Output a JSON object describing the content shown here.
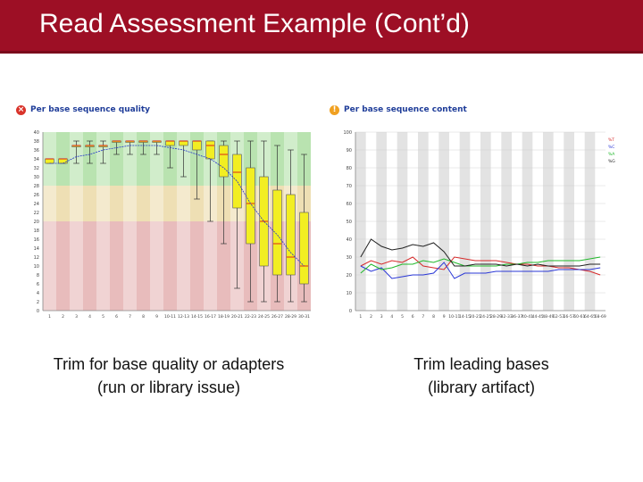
{
  "slide": {
    "title": "Read Assessment Example (Cont’d)",
    "header_color": "#9d0f25"
  },
  "left_panel": {
    "status_icon": "fail-cross-icon",
    "title": "Per base sequence quality",
    "caption_line1": "Trim for base quality or adapters",
    "caption_line2": "(run or library issue)"
  },
  "right_panel": {
    "status_icon": "warning-exclamation-icon",
    "title": "Per base sequence content",
    "caption_line1": "Trim leading bases",
    "caption_line2": "(library artifact)"
  },
  "chart_data": [
    {
      "type": "box",
      "x_ticks": [
        "1",
        "2",
        "3",
        "4",
        "5",
        "6",
        "7",
        "8",
        "9",
        "10-11",
        "12-13",
        "14-15",
        "16-17",
        "18-19",
        "20-21",
        "22-23",
        "24-25",
        "26-27",
        "28-29",
        "30-31"
      ],
      "ylim": [
        0,
        40
      ],
      "y_ticks": [
        0,
        2,
        4,
        6,
        8,
        10,
        12,
        14,
        16,
        18,
        20,
        22,
        24,
        26,
        28,
        30,
        32,
        34,
        36,
        38,
        40
      ],
      "zones": [
        {
          "from": 28,
          "to": 40,
          "color": "#b9e3b0"
        },
        {
          "from": 20,
          "to": 28,
          "color": "#eedfb4"
        },
        {
          "from": 0,
          "to": 20,
          "color": "#e8bcbc"
        }
      ],
      "boxes": [
        {
          "q1": 33,
          "med": 34,
          "q3": 34,
          "lo": 33,
          "hi": 34
        },
        {
          "q1": 33,
          "med": 34,
          "q3": 34,
          "lo": 33,
          "hi": 34
        },
        {
          "q1": 37,
          "med": 37,
          "q3": 37,
          "lo": 33,
          "hi": 38
        },
        {
          "q1": 37,
          "med": 37,
          "q3": 37,
          "lo": 33,
          "hi": 38
        },
        {
          "q1": 37,
          "med": 37,
          "q3": 37,
          "lo": 33,
          "hi": 38
        },
        {
          "q1": 38,
          "med": 38,
          "q3": 38,
          "lo": 35,
          "hi": 38
        },
        {
          "q1": 38,
          "med": 38,
          "q3": 38,
          "lo": 35,
          "hi": 38
        },
        {
          "q1": 38,
          "med": 38,
          "q3": 38,
          "lo": 35,
          "hi": 38
        },
        {
          "q1": 38,
          "med": 38,
          "q3": 38,
          "lo": 35,
          "hi": 38
        },
        {
          "q1": 37,
          "med": 38,
          "q3": 38,
          "lo": 32,
          "hi": 38
        },
        {
          "q1": 37,
          "med": 38,
          "q3": 38,
          "lo": 30,
          "hi": 38
        },
        {
          "q1": 36,
          "med": 38,
          "q3": 38,
          "lo": 25,
          "hi": 38
        },
        {
          "q1": 34,
          "med": 37,
          "q3": 38,
          "lo": 20,
          "hi": 38
        },
        {
          "q1": 30,
          "med": 35,
          "q3": 37,
          "lo": 15,
          "hi": 38
        },
        {
          "q1": 23,
          "med": 31,
          "q3": 35,
          "lo": 5,
          "hi": 38
        },
        {
          "q1": 15,
          "med": 24,
          "q3": 32,
          "lo": 2,
          "hi": 38
        },
        {
          "q1": 10,
          "med": 20,
          "q3": 30,
          "lo": 2,
          "hi": 38
        },
        {
          "q1": 8,
          "med": 15,
          "q3": 27,
          "lo": 2,
          "hi": 37
        },
        {
          "q1": 8,
          "med": 12,
          "q3": 26,
          "lo": 2,
          "hi": 36
        },
        {
          "q1": 6,
          "med": 10,
          "q3": 22,
          "lo": 2,
          "hi": 35
        }
      ],
      "mean": [
        33,
        33,
        34.5,
        35,
        36,
        36.5,
        37,
        37,
        37,
        36.5,
        36,
        35,
        34,
        32,
        29,
        24,
        20,
        17,
        13,
        10
      ]
    },
    {
      "type": "line",
      "x_ticks": [
        "1",
        "2",
        "3",
        "4",
        "5",
        "6",
        "7",
        "8",
        "9",
        "10-11",
        "14-15",
        "20-21",
        "24-25",
        "28-29",
        "32-33",
        "36-37",
        "40-41",
        "44-45",
        "48-49",
        "52-53",
        "56-57",
        "60-61",
        "64-65",
        "68-69"
      ],
      "ylim": [
        0,
        100
      ],
      "y_ticks": [
        0,
        10,
        20,
        30,
        40,
        50,
        60,
        70,
        80,
        90,
        100
      ],
      "series": [
        {
          "name": "%T",
          "color": "#d62a2a",
          "values": [
            25,
            28,
            26,
            28,
            27,
            30,
            25,
            24,
            23,
            30,
            29,
            28,
            28,
            28,
            27,
            26,
            26,
            25,
            25,
            24,
            24,
            23,
            22,
            20
          ]
        },
        {
          "name": "%C",
          "color": "#2a37d6",
          "values": [
            25,
            22,
            24,
            18,
            19,
            20,
            20,
            21,
            27,
            18,
            21,
            21,
            21,
            22,
            22,
            22,
            22,
            22,
            22,
            23,
            23,
            23,
            23,
            24
          ]
        },
        {
          "name": "%A",
          "color": "#20b82a",
          "values": [
            21,
            26,
            23,
            24,
            26,
            26,
            28,
            27,
            29,
            27,
            25,
            25,
            25,
            25,
            26,
            26,
            27,
            27,
            28,
            28,
            28,
            28,
            29,
            30
          ]
        },
        {
          "name": "%G",
          "color": "#222222",
          "values": [
            30,
            40,
            36,
            34,
            35,
            37,
            36,
            38,
            33,
            25,
            25,
            26,
            26,
            26,
            25,
            26,
            25,
            26,
            25,
            25,
            25,
            25,
            26,
            26
          ]
        }
      ]
    }
  ]
}
